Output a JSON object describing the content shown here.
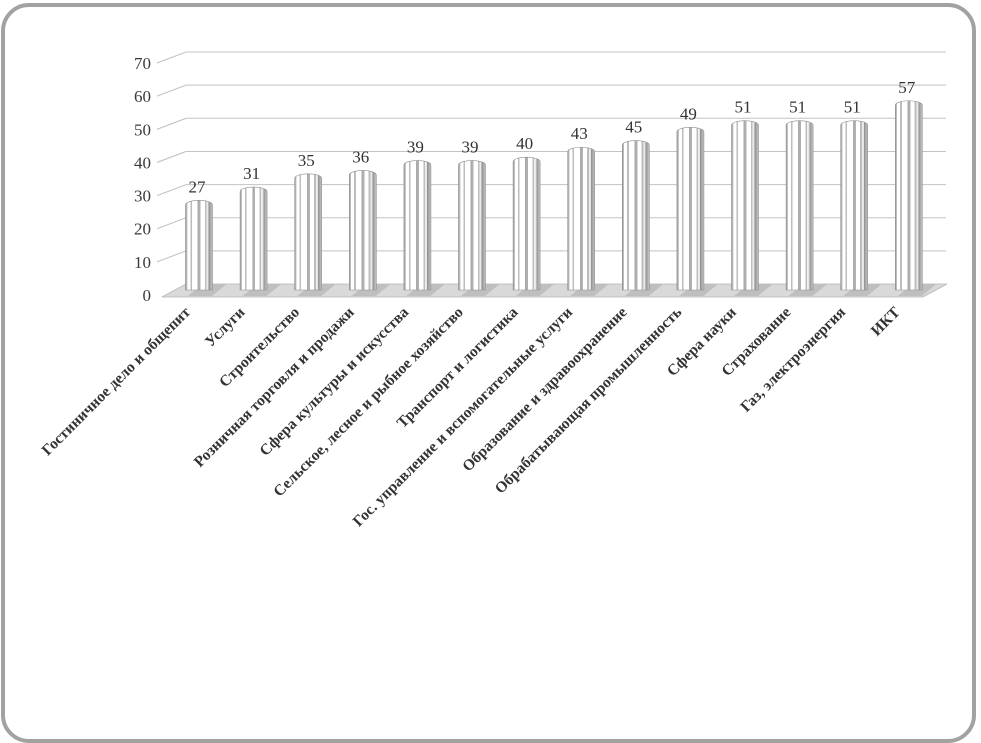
{
  "figure": {
    "border_color": "#a2a2a2",
    "background_color": "#ffffff"
  },
  "chart_data": {
    "type": "bar",
    "style": "3d-column-grayscale-striped",
    "title": "",
    "xlabel": "",
    "ylabel": "",
    "categories": [
      "Гостиничное дело и общепит",
      "Услуги",
      "Строительство",
      "Розничная торговля и продажи",
      "Сфера культуры и искусства",
      "Сельское, лесное и рыбное хозяйство",
      "Транспорт и логистика",
      "Гос. управление и вспомогательные услуги",
      "Образование и здравоохранение",
      "Обрабатывающая промышленность",
      "Сфера науки",
      "Страхование",
      "Газ, электроэнергия",
      "ИКТ"
    ],
    "values": [
      27,
      31,
      35,
      36,
      39,
      39,
      40,
      43,
      45,
      49,
      51,
      51,
      51,
      57
    ],
    "data_labels": [
      27,
      31,
      35,
      36,
      39,
      39,
      40,
      43,
      45,
      49,
      51,
      51,
      51,
      57
    ],
    "ylim": [
      0,
      70
    ],
    "yticks": [
      0,
      10,
      20,
      30,
      40,
      50,
      60,
      70
    ],
    "grid": true,
    "legend": "none",
    "category_label_rotation_deg": 45,
    "colors": {
      "text": "#3a3a3a",
      "gridline": "#c3c3c3",
      "floor": "#d9d9d9",
      "floor_edge": "#b5b5b5",
      "bar_shadow": "#a6a6a6",
      "bar_edge": "#8f8f8f",
      "bar_white": "#ffffff",
      "bar_stripe": "#bdbdbd"
    }
  }
}
